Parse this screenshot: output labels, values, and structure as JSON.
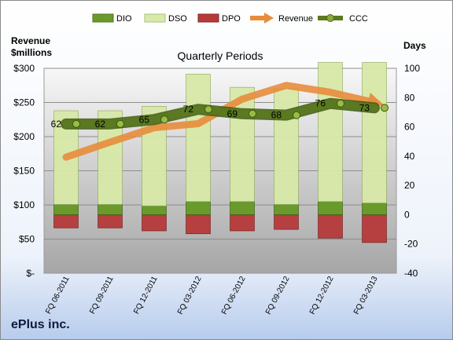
{
  "chart_data": {
    "type": "bar",
    "title": "Quarterly Periods",
    "company": "ePlus inc.",
    "left_axis_title": [
      "Revenue",
      "$millions"
    ],
    "right_axis_title": "Days",
    "categories": [
      "FQ 06-2011",
      "FQ 09-2011",
      "FQ 12-2011",
      "FQ 03-2012",
      "FQ 06-2012",
      "FQ 09-2012",
      "FQ 12-2012",
      "FQ 03-2013"
    ],
    "left_ylim": [
      0,
      300
    ],
    "left_ticks": [
      0,
      50,
      100,
      150,
      200,
      250,
      300
    ],
    "left_tick_labels": [
      "$-",
      "$50",
      "$100",
      "$150",
      "$200",
      "$250",
      "$300"
    ],
    "right_ylim": [
      -40,
      100
    ],
    "right_ticks": [
      -40,
      -20,
      0,
      20,
      40,
      60,
      80,
      100
    ],
    "right_tick_labels": [
      "-40",
      "-20",
      "0",
      "20",
      "40",
      "60",
      "80",
      "100"
    ],
    "legend_position": "top",
    "series": [
      {
        "name": "DIO",
        "kind": "bar",
        "axis": "right",
        "color": "#6a9a2c",
        "values": [
          7,
          7,
          6,
          9,
          9,
          7,
          9,
          8
        ]
      },
      {
        "name": "DSO",
        "kind": "bar",
        "axis": "right",
        "color": "#d8e9a8",
        "values": [
          64,
          64,
          68,
          87,
          78,
          79,
          95,
          96
        ]
      },
      {
        "name": "DPO",
        "kind": "bar",
        "axis": "right",
        "color": "#b63a3a",
        "values": [
          -9,
          -9,
          -11,
          -13,
          -11,
          -10,
          -16,
          -19
        ]
      },
      {
        "name": "Revenue",
        "kind": "line",
        "axis": "left",
        "color": "#e88c3c",
        "values": [
          170,
          192,
          213,
          219,
          255,
          275,
          265,
          250
        ]
      },
      {
        "name": "CCC",
        "kind": "line",
        "axis": "right",
        "color": "#5b7a1f",
        "values": [
          62,
          62,
          65,
          72,
          69,
          68,
          76,
          73
        ],
        "labels": [
          "62",
          "62",
          "65",
          "72",
          "69",
          "68",
          "76",
          "73"
        ]
      }
    ]
  }
}
